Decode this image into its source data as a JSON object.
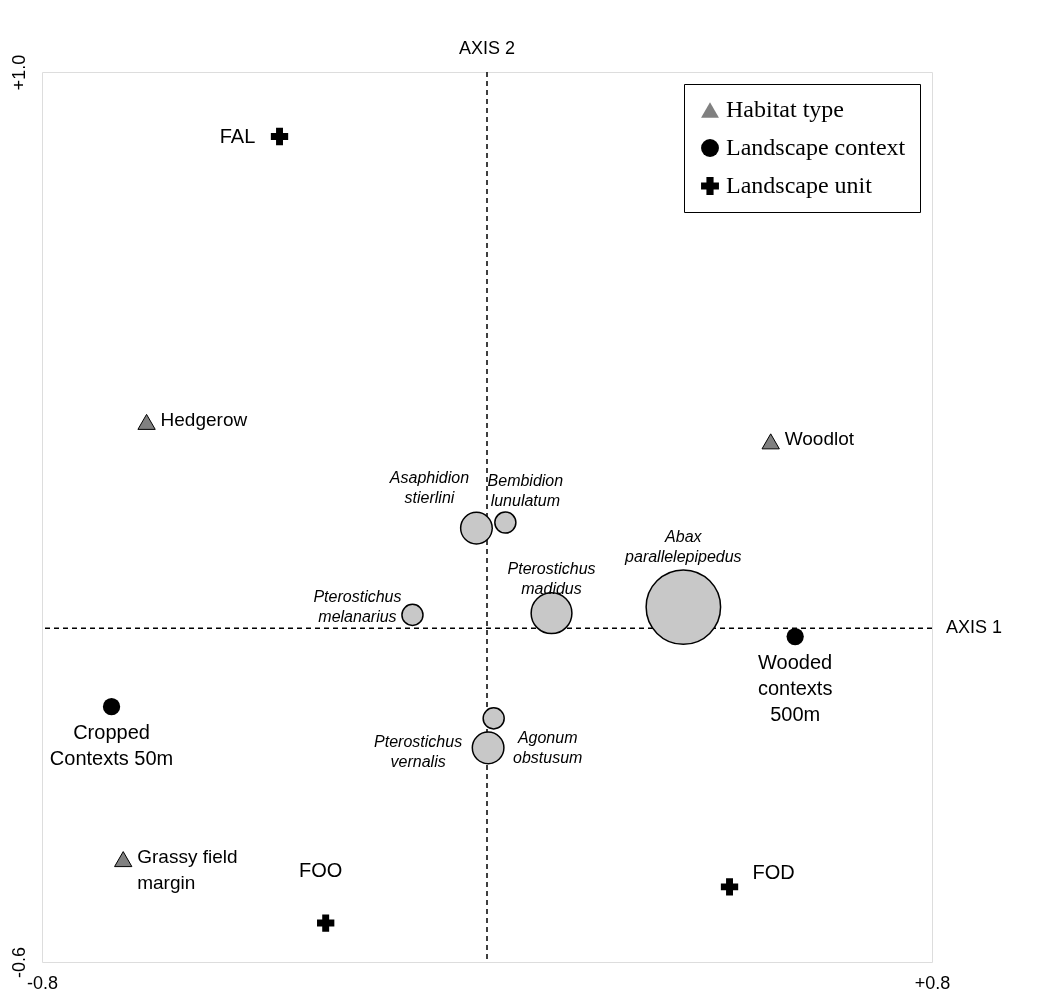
{
  "chart_data": {
    "type": "scatter",
    "xlim": [
      -0.8,
      0.8
    ],
    "ylim": [
      -0.6,
      1.0
    ],
    "xticks": [
      -0.8,
      {
        "value": 0.8,
        "label": "+0.8"
      }
    ],
    "yticks": [
      -0.6,
      {
        "value": 1.0,
        "label": "+1.0"
      }
    ],
    "grid": false,
    "legend": "top right",
    "ref_lines": [
      {
        "axis": "x",
        "value": 0,
        "label": "AXIS 2",
        "line_style": "dashed"
      },
      {
        "axis": "y",
        "value": 0,
        "label": "AXIS 1",
        "line_style": "dashed"
      }
    ],
    "series": [
      {
        "name": "Habitat type",
        "type": "scatter",
        "marker": "triangle",
        "color": "#808080",
        "x": [
          -0.612,
          0.51,
          -0.654
        ],
        "values": [
          0.371,
          0.336,
          -0.415
        ],
        "value_labels": [
          "Hedgerow",
          "Woodlot",
          "Grassy field\nmargin"
        ]
      },
      {
        "name": "Landscape context",
        "type": "scatter",
        "marker": "circle",
        "color": "#000000",
        "x": [
          0.554,
          -0.675
        ],
        "values": [
          -0.015,
          -0.141
        ],
        "value_labels": [
          "Wooded\ncontexts\n500m",
          "Cropped\nContexts 50m"
        ]
      },
      {
        "name": "Landscape unit",
        "type": "scatter",
        "marker": "cross",
        "color": "#000000",
        "x": [
          -0.373,
          -0.29,
          0.436
        ],
        "values": [
          0.884,
          -0.53,
          -0.465
        ],
        "value_labels": [
          "FAL",
          "FOO",
          "FOD"
        ]
      },
      {
        "type": "bubble",
        "color": "#c8c8c8",
        "x": [
          -0.019,
          0.033,
          -0.134,
          0.116,
          0.353,
          0.012,
          0.002
        ],
        "values": [
          0.18,
          0.19,
          0.024,
          0.027,
          0.038,
          -0.162,
          -0.215
        ],
        "sizes": [
          0.18,
          0.08,
          0.08,
          0.3,
          1,
          0.08,
          0.18
        ],
        "value_labels": [
          "Asaphidion\nstierlini",
          "Bembidion\nlunulatum",
          "Pterostichus\nmelanarius",
          "Pterostichus\nmadidus",
          "Abax\nparallelepipedus",
          "Agonum\nobstusum",
          "Pterostichus\nvernalis"
        ]
      }
    ]
  }
}
